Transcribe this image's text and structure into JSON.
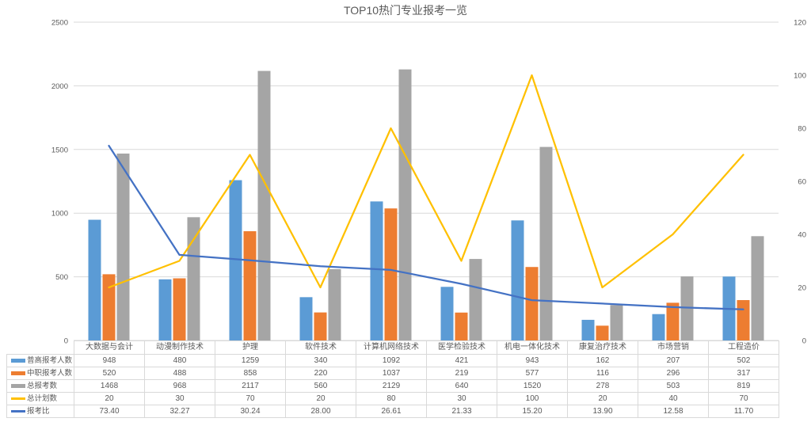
{
  "title": "TOP10热门专业报考一览",
  "chart_data": {
    "type": "combo",
    "title": "TOP10热门专业报考一览",
    "categories": [
      "大数据与会计",
      "动漫制作技术",
      "护理",
      "软件技术",
      "计算机网络技术",
      "医学检验技术",
      "机电一体化技术",
      "康复治疗技术",
      "市场营销",
      "工程造价"
    ],
    "series": [
      {
        "name": "普高报考人数",
        "chart": "bar",
        "axis": "left",
        "color": "#5B9BD5",
        "values": [
          948,
          480,
          1259,
          340,
          1092,
          421,
          943,
          162,
          207,
          502
        ],
        "display": [
          "948",
          "480",
          "1259",
          "340",
          "1092",
          "421",
          "943",
          "162",
          "207",
          "502"
        ]
      },
      {
        "name": "中职报考人数",
        "chart": "bar",
        "axis": "left",
        "color": "#ED7D31",
        "values": [
          520,
          488,
          858,
          220,
          1037,
          219,
          577,
          116,
          296,
          317
        ],
        "display": [
          "520",
          "488",
          "858",
          "220",
          "1037",
          "219",
          "577",
          "116",
          "296",
          "317"
        ]
      },
      {
        "name": "总报考数",
        "chart": "bar",
        "axis": "left",
        "color": "#A5A5A5",
        "values": [
          1468,
          968,
          2117,
          560,
          2129,
          640,
          1520,
          278,
          503,
          819
        ],
        "display": [
          "1468",
          "968",
          "2117",
          "560",
          "2129",
          "640",
          "1520",
          "278",
          "503",
          "819"
        ]
      },
      {
        "name": "总计划数",
        "chart": "line",
        "axis": "right",
        "color": "#FFC000",
        "values": [
          20,
          30,
          70,
          20,
          80,
          30,
          100,
          20,
          40,
          70
        ],
        "display": [
          "20",
          "30",
          "70",
          "20",
          "80",
          "30",
          "100",
          "20",
          "40",
          "70"
        ]
      },
      {
        "name": "报考比",
        "chart": "line",
        "axis": "right",
        "color": "#4472C4",
        "values": [
          73.4,
          32.27,
          30.24,
          28.0,
          26.61,
          21.33,
          15.2,
          13.9,
          12.58,
          11.7
        ],
        "display": [
          "73.40",
          "32.27",
          "30.24",
          "28.00",
          "26.61",
          "21.33",
          "15.20",
          "13.90",
          "12.58",
          "11.70"
        ]
      }
    ],
    "left_axis": {
      "min": 0,
      "max": 2500,
      "step": 500,
      "ticks": [
        "0",
        "500",
        "1000",
        "1500",
        "2000",
        "2500"
      ]
    },
    "right_axis": {
      "min": 0,
      "max": 120,
      "step": 20,
      "ticks": [
        "0",
        "20",
        "40",
        "60",
        "80",
        "100",
        "120"
      ]
    },
    "grid": true,
    "legend_position": "table-left"
  },
  "colors": {
    "title_text": "#595959",
    "axis_text": "#595959",
    "gridline": "#D9D9D9",
    "table_border": "#D9D9D9",
    "background": "#FFFFFF"
  }
}
